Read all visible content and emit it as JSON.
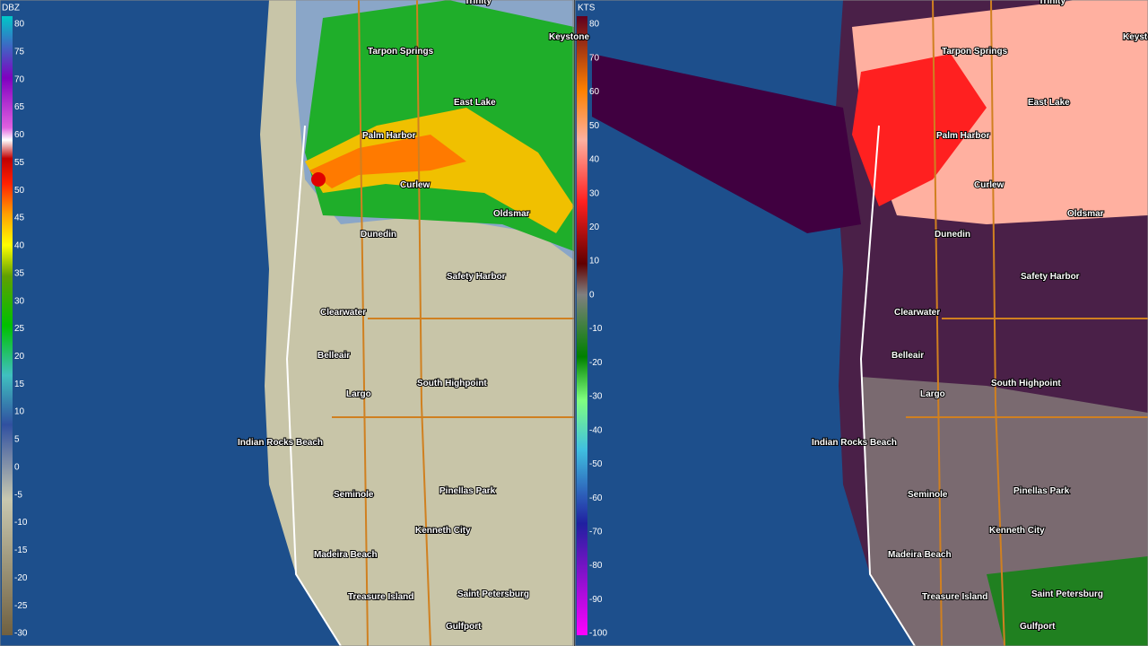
{
  "reflectivity_panel": {
    "unit": "DBZ",
    "scale": [
      80,
      75,
      70,
      65,
      60,
      55,
      50,
      45,
      40,
      35,
      30,
      25,
      20,
      15,
      10,
      5,
      0,
      -5,
      -10,
      -15,
      -20,
      -25,
      -30
    ]
  },
  "velocity_panel": {
    "unit": "KTS",
    "scale": [
      80,
      70,
      60,
      50,
      40,
      30,
      20,
      10,
      0,
      -10,
      -20,
      -30,
      -40,
      -50,
      -60,
      -70,
      -80,
      -90,
      -100
    ]
  },
  "places": [
    "Trinity",
    "Keystone",
    "Tarpon Springs",
    "East Lake",
    "Palm Harbor",
    "Curlew",
    "Oldsmar",
    "Dunedin",
    "Safety Harbor",
    "Clearwater",
    "Belleair",
    "South Highpoint",
    "Largo",
    "Indian Rocks Beach",
    "Seminole",
    "Pinellas Park",
    "Kenneth City",
    "Madeira Beach",
    "Treasure Island",
    "Saint Petersburg",
    "Gulfport"
  ]
}
